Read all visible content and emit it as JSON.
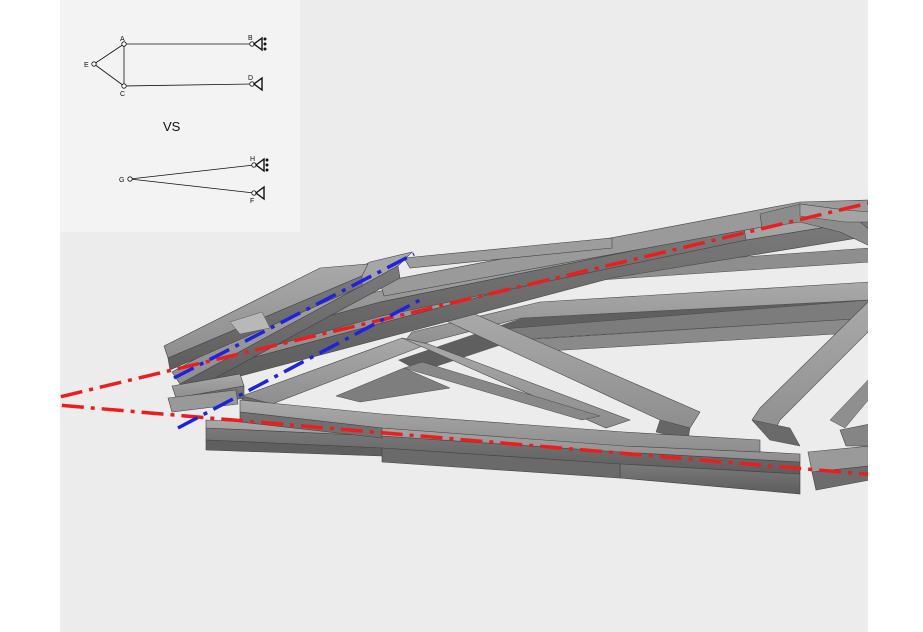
{
  "inset": {
    "top_diagram": {
      "nodes": [
        "A",
        "B",
        "C",
        "D",
        "E"
      ],
      "edges": [
        [
          "E",
          "A"
        ],
        [
          "E",
          "C"
        ],
        [
          "A",
          "C"
        ],
        [
          "A",
          "B"
        ],
        [
          "C",
          "D"
        ]
      ],
      "supports": {
        "B": "pinned-support-icon",
        "D": "roller-support-icon"
      }
    },
    "separator_text": "VS",
    "bottom_diagram": {
      "nodes": [
        "G",
        "H",
        "F"
      ],
      "edges": [
        [
          "G",
          "H"
        ],
        [
          "G",
          "F"
        ]
      ],
      "supports": {
        "H": "pinned-support-icon",
        "F": "roller-support-icon"
      }
    }
  },
  "colors": {
    "viewport_bg": "#ececec",
    "inset_bg": "#f3f3f3",
    "member_top": "#9b9b9b",
    "member_side": "#6f6f6f",
    "red_axis": "#ee1c1c",
    "blue_axis": "#1f22e0"
  },
  "axis_style": "dash-dot"
}
